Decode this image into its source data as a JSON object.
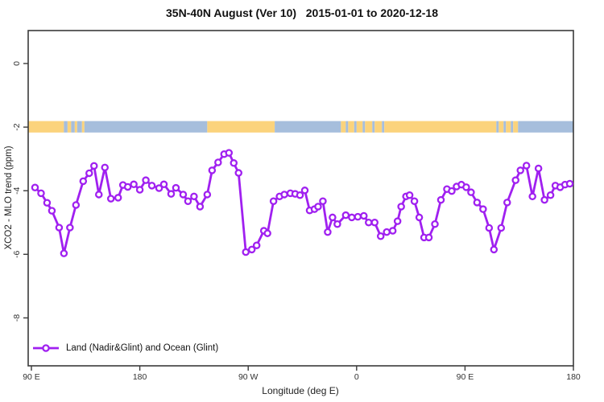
{
  "title": "35N-40N August (Ver 10)   2015-01-01 to 2020-12-18",
  "legend": {
    "label": "Land (Nadir&Glint) and Ocean (Glint)"
  },
  "axes": {
    "x_label": "Longitude (deg E)",
    "y_label": "XCO2 - MLO trend (ppm)",
    "x_ticks": [
      {
        "lon": 90,
        "label": "90 E"
      },
      {
        "lon": 180,
        "label": "180"
      },
      {
        "lon": 270,
        "label": "90 W"
      },
      {
        "lon": 360,
        "label": "0"
      },
      {
        "lon": 450,
        "label": "90 E"
      },
      {
        "lon": 540,
        "label": "180"
      }
    ],
    "y_ticks": [
      {
        "v": 0,
        "label": "0"
      },
      {
        "v": -2,
        "label": "-2"
      },
      {
        "v": -4,
        "label": "-4"
      },
      {
        "v": -6,
        "label": "-6"
      },
      {
        "v": -8,
        "label": "-8"
      }
    ]
  },
  "colors": {
    "line": "#A020F0",
    "marker_fill": "#ffffff",
    "land": "#FBD37C",
    "ocean": "#A6BEDC",
    "axis": "#3a3a3a",
    "tick_text": "#333333"
  },
  "chart_data": {
    "type": "line",
    "title": "35N-40N August (Ver 10)   2015-01-01 to 2020-12-18",
    "xlabel": "Longitude (deg E)",
    "ylabel": "XCO2 - MLO trend (ppm)",
    "x_range_deg_east_continuous": [
      87,
      541
    ],
    "ylim": [
      -9.5,
      1
    ],
    "grid": false,
    "legend_position": "bottom-left",
    "series": [
      {
        "name": "Land (Nadir&Glint) and Ocean (Glint)",
        "marker": "open-circle",
        "points": [
          [
            93,
            -3.9
          ],
          [
            98,
            -4.08
          ],
          [
            103,
            -4.38
          ],
          [
            107,
            -4.63
          ],
          [
            113,
            -5.16
          ],
          [
            117,
            -5.97
          ],
          [
            122,
            -5.16
          ],
          [
            127,
            -4.45
          ],
          [
            133,
            -3.7
          ],
          [
            138,
            -3.45
          ],
          [
            142,
            -3.22
          ],
          [
            146,
            -4.12
          ],
          [
            151,
            -3.27
          ],
          [
            156,
            -4.25
          ],
          [
            162,
            -4.22
          ],
          [
            166,
            -3.82
          ],
          [
            170,
            -3.88
          ],
          [
            175,
            -3.8
          ],
          [
            180,
            -3.97
          ],
          [
            185,
            -3.67
          ],
          [
            190,
            -3.84
          ],
          [
            196,
            -3.92
          ],
          [
            200,
            -3.8
          ],
          [
            206,
            -4.1
          ],
          [
            210,
            -3.91
          ],
          [
            216,
            -4.12
          ],
          [
            220,
            -4.33
          ],
          [
            225,
            -4.18
          ],
          [
            230,
            -4.5
          ],
          [
            236,
            -4.12
          ],
          [
            240,
            -3.36
          ],
          [
            245,
            -3.11
          ],
          [
            250,
            -2.85
          ],
          [
            254,
            -2.81
          ],
          [
            258,
            -3.13
          ],
          [
            262,
            -3.44
          ],
          [
            268,
            -5.93
          ],
          [
            273,
            -5.85
          ],
          [
            277,
            -5.72
          ],
          [
            283,
            -5.26
          ],
          [
            286,
            -5.34
          ],
          [
            291,
            -4.33
          ],
          [
            296,
            -4.18
          ],
          [
            300,
            -4.12
          ],
          [
            305,
            -4.08
          ],
          [
            309,
            -4.1
          ],
          [
            313,
            -4.14
          ],
          [
            317,
            -3.99
          ],
          [
            321,
            -4.62
          ],
          [
            325,
            -4.58
          ],
          [
            328,
            -4.5
          ],
          [
            332,
            -4.33
          ],
          [
            336,
            -5.3
          ],
          [
            340,
            -4.84
          ],
          [
            344,
            -5.05
          ],
          [
            351,
            -4.77
          ],
          [
            356,
            -4.84
          ],
          [
            361,
            -4.82
          ],
          [
            366,
            -4.79
          ],
          [
            370,
            -5.0
          ],
          [
            375,
            -5.0
          ],
          [
            380,
            -5.43
          ],
          [
            385,
            -5.3
          ],
          [
            390,
            -5.26
          ],
          [
            394,
            -4.96
          ],
          [
            397,
            -4.5
          ],
          [
            401,
            -4.18
          ],
          [
            404,
            -4.14
          ],
          [
            408,
            -4.33
          ],
          [
            412,
            -4.84
          ],
          [
            416,
            -5.47
          ],
          [
            420,
            -5.47
          ],
          [
            425,
            -5.05
          ],
          [
            430,
            -4.29
          ],
          [
            435,
            -3.95
          ],
          [
            439,
            -4.01
          ],
          [
            443,
            -3.87
          ],
          [
            447,
            -3.81
          ],
          [
            451,
            -3.89
          ],
          [
            455,
            -4.05
          ],
          [
            460,
            -4.37
          ],
          [
            465,
            -4.58
          ],
          [
            470,
            -5.17
          ],
          [
            474,
            -5.85
          ],
          [
            480,
            -5.17
          ],
          [
            485,
            -4.37
          ],
          [
            492,
            -3.67
          ],
          [
            496,
            -3.36
          ],
          [
            501,
            -3.21
          ],
          [
            506,
            -4.18
          ],
          [
            511,
            -3.3
          ],
          [
            516,
            -4.29
          ],
          [
            521,
            -4.14
          ],
          [
            525,
            -3.84
          ],
          [
            529,
            -3.89
          ],
          [
            533,
            -3.81
          ],
          [
            537,
            -3.78
          ]
        ]
      }
    ],
    "surface_type_band": {
      "description": "horizontal land/ocean strip drawn at y = -2",
      "v_top": -1.81,
      "v_bottom": -2.17,
      "segments": [
        {
          "type": "land",
          "from": 87,
          "to": 117
        },
        {
          "type": "ocean",
          "from": 117,
          "to": 120
        },
        {
          "type": "land",
          "from": 120,
          "to": 123
        },
        {
          "type": "ocean",
          "from": 123,
          "to": 126
        },
        {
          "type": "land",
          "from": 126,
          "to": 128
        },
        {
          "type": "ocean",
          "from": 128,
          "to": 132
        },
        {
          "type": "land",
          "from": 132,
          "to": 134
        },
        {
          "type": "ocean",
          "from": 134,
          "to": 236
        },
        {
          "type": "land",
          "from": 236,
          "to": 292
        },
        {
          "type": "ocean",
          "from": 292,
          "to": 347
        },
        {
          "type": "land",
          "from": 347,
          "to": 351
        },
        {
          "type": "ocean",
          "from": 351,
          "to": 353
        },
        {
          "type": "land",
          "from": 353,
          "to": 358
        },
        {
          "type": "ocean",
          "from": 358,
          "to": 360
        },
        {
          "type": "land",
          "from": 360,
          "to": 365
        },
        {
          "type": "ocean",
          "from": 365,
          "to": 367
        },
        {
          "type": "land",
          "from": 367,
          "to": 373
        },
        {
          "type": "ocean",
          "from": 373,
          "to": 375
        },
        {
          "type": "land",
          "from": 375,
          "to": 381
        },
        {
          "type": "ocean",
          "from": 381,
          "to": 383
        },
        {
          "type": "land",
          "from": 383,
          "to": 476
        },
        {
          "type": "ocean",
          "from": 476,
          "to": 478
        },
        {
          "type": "land",
          "from": 478,
          "to": 482
        },
        {
          "type": "ocean",
          "from": 482,
          "to": 484
        },
        {
          "type": "land",
          "from": 484,
          "to": 488
        },
        {
          "type": "ocean",
          "from": 488,
          "to": 490
        },
        {
          "type": "land",
          "from": 490,
          "to": 494
        },
        {
          "type": "ocean",
          "from": 494,
          "to": 541
        }
      ]
    }
  }
}
